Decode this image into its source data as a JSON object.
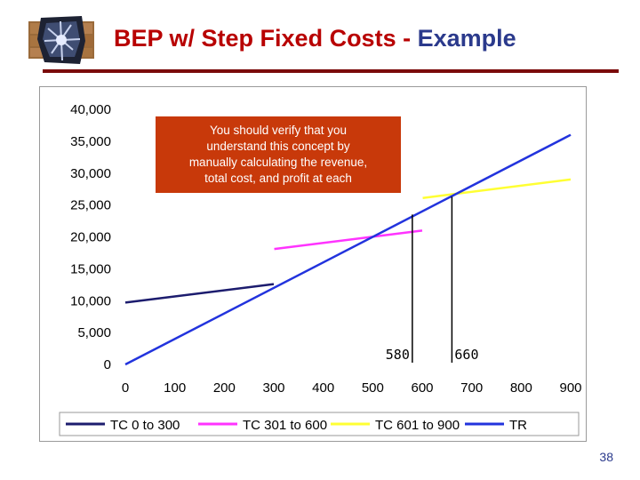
{
  "title": {
    "part1": "BEP w/ Step Fixed Costs - ",
    "part2": "Example"
  },
  "page_number": "38",
  "colors": {
    "title_red": "#b80000",
    "title_blue": "#2b3a8c",
    "callout_bg": "#c8390a",
    "tc1": "#1c1c6e",
    "tc2": "#ff33ff",
    "tc3": "#ffff33",
    "tr": "#2233dd"
  },
  "callout": {
    "text": "You should verify that you understand this concept by manually calculating the revenue, total cost, and profit at each"
  },
  "chart_data": {
    "type": "line",
    "title": "",
    "xlabel": "",
    "ylabel": "",
    "xlim": [
      0,
      900
    ],
    "ylim": [
      0,
      40000
    ],
    "x_ticks": [
      "0",
      "100",
      "200",
      "300",
      "400",
      "500",
      "600",
      "700",
      "800",
      "900"
    ],
    "y_ticks": [
      "0",
      "5,000",
      "10,000",
      "15,000",
      "20,000",
      "25,000",
      "30,000",
      "35,000",
      "40,000"
    ],
    "grid": false,
    "legend": "bottom",
    "series": [
      {
        "name": "TC 0 to 300",
        "x": [
          0,
          300
        ],
        "y": [
          9700,
          12600
        ]
      },
      {
        "name": "TC 301 to 600",
        "x": [
          301,
          600
        ],
        "y": [
          18100,
          21000
        ]
      },
      {
        "name": "TC 601 to 900",
        "x": [
          601,
          900
        ],
        "y": [
          26100,
          29000
        ]
      },
      {
        "name": "TR",
        "x": [
          0,
          900
        ],
        "y": [
          0,
          36000
        ]
      }
    ],
    "annotations": [
      {
        "label": "580",
        "x": 580
      },
      {
        "label": "660",
        "x": 660
      }
    ]
  }
}
